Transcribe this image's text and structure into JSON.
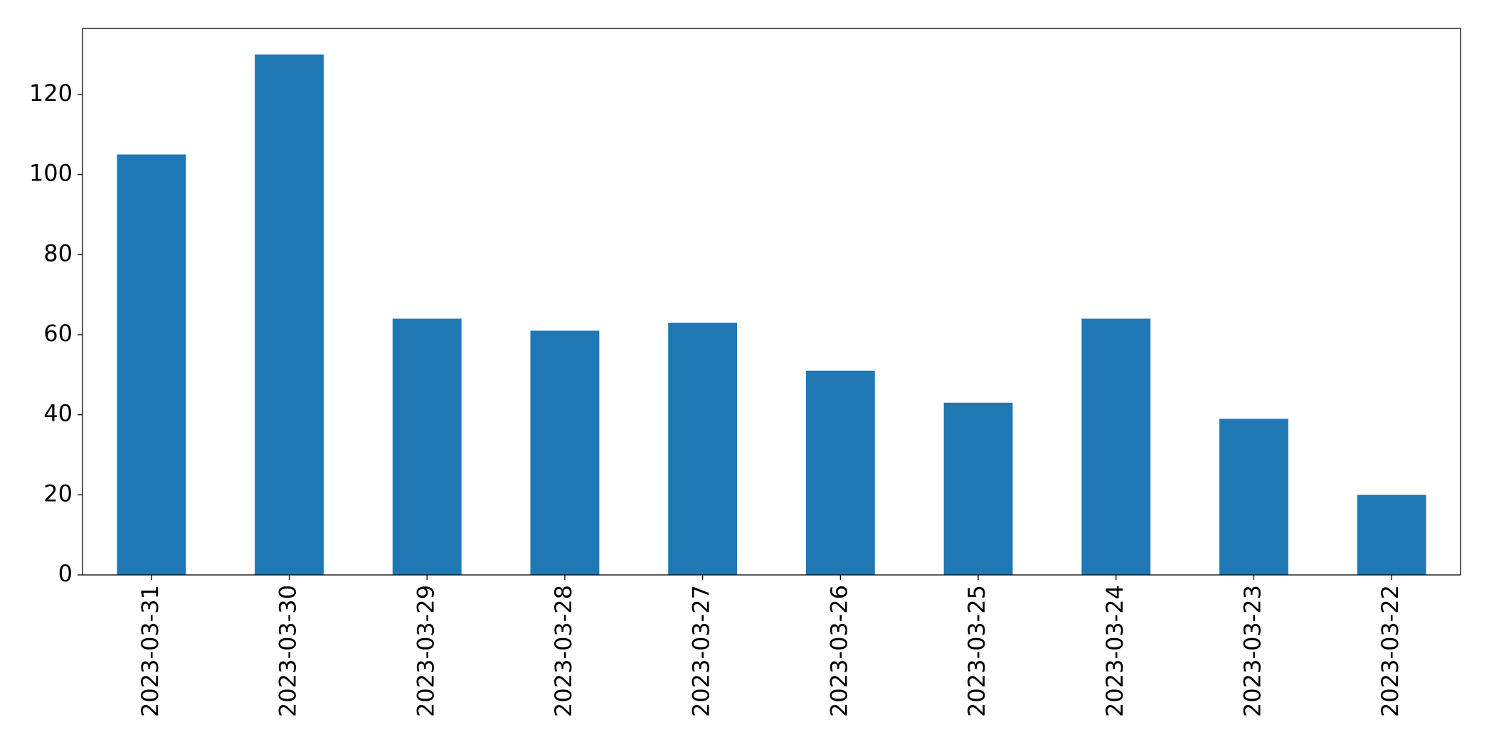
{
  "chart_data": {
    "type": "bar",
    "categories": [
      "2023-03-31",
      "2023-03-30",
      "2023-03-29",
      "2023-03-28",
      "2023-03-27",
      "2023-03-26",
      "2023-03-25",
      "2023-03-24",
      "2023-03-23",
      "2023-03-22"
    ],
    "values": [
      105,
      130,
      64,
      61,
      63,
      51,
      43,
      64,
      39,
      20
    ],
    "color": "#1f77b4",
    "ylim": [
      0,
      136.5
    ],
    "yticks": [
      0,
      20,
      40,
      60,
      80,
      100,
      120
    ],
    "grid": false
  }
}
